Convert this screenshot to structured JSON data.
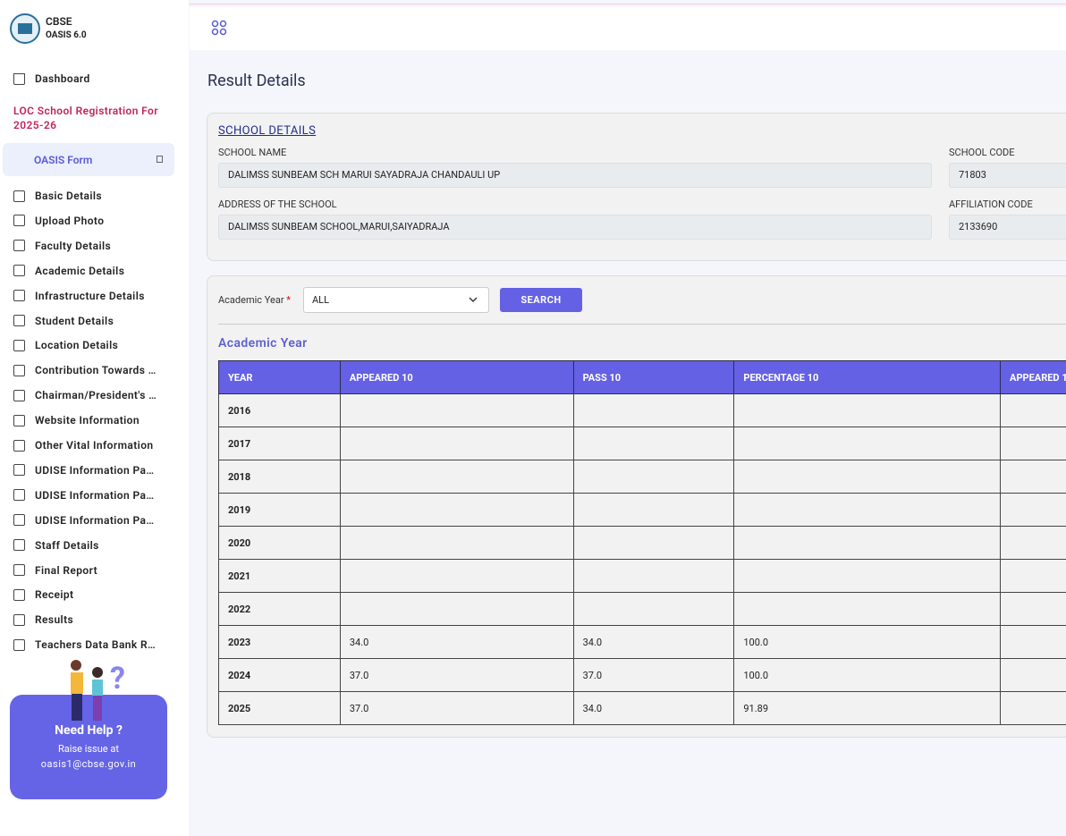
{
  "sidebar": {
    "brand": "CBSE",
    "version": "OASIS 6.0",
    "dashboard": "Dashboard",
    "registration": "LOC School Registration For 2025-26",
    "form_menu": "OASIS Form",
    "items": [
      "Basic Details",
      "Upload Photo",
      "Faculty Details",
      "Academic Details",
      "Infrastructure Details",
      "Student Details",
      "Location Details",
      "Contribution Towards …",
      "Chairman/President's …",
      "Website Information",
      "Other Vital Information",
      "UDISE Information Pa…",
      "UDISE Information Pa…",
      "UDISE Information Pa…",
      "Staff Details",
      "Final Report",
      "Receipt",
      "Results",
      "Teachers Data Bank R…"
    ],
    "help": {
      "title": "Need Help ?",
      "line": "Raise issue at",
      "email": "oasis1@cbse.gov.in"
    }
  },
  "page": {
    "title": "Result Details"
  },
  "school": {
    "heading": "SCHOOL DETAILS",
    "fields": [
      {
        "label": "SCHOOL NAME",
        "value": "DALIMSS SUNBEAM SCH MARUI SAYADRAJA CHANDAULI UP"
      },
      {
        "label": "SCHOOL CODE",
        "value": "71803"
      },
      {
        "label": "ADDRESS OF THE SCHOOL",
        "value": "DALIMSS SUNBEAM SCHOOL,MARUI,SAIYADRAJA"
      },
      {
        "label": "AFFILIATION CODE",
        "value": "2133690"
      }
    ]
  },
  "search": {
    "label": "Academic Year",
    "required": "*",
    "selected": "ALL",
    "button": "SEARCH"
  },
  "table": {
    "title": "Academic Year",
    "columns": [
      "YEAR",
      "APPEARED 10",
      "PASS 10",
      "PERCENTAGE 10",
      "APPEARED 1"
    ],
    "rows": [
      [
        "2016",
        null,
        null,
        null,
        null
      ],
      [
        "2017",
        null,
        null,
        null,
        null
      ],
      [
        "2018",
        null,
        null,
        null,
        null
      ],
      [
        "2019",
        null,
        null,
        null,
        null
      ],
      [
        "2020",
        null,
        null,
        null,
        null
      ],
      [
        "2021",
        null,
        null,
        null,
        null
      ],
      [
        "2022",
        null,
        null,
        null,
        null
      ],
      [
        "2023",
        "34.0",
        "34.0",
        "100.0",
        null
      ],
      [
        "2024",
        "37.0",
        "37.0",
        "100.0",
        null
      ],
      [
        "2025",
        "37.0",
        "34.0",
        "91.89",
        null
      ]
    ]
  }
}
